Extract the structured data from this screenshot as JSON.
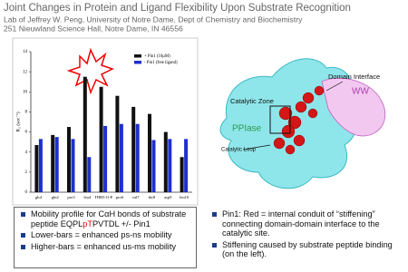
{
  "header": {
    "title": "Joint Changes in Protein and Ligand Flexibility Upon Substrate Recognition",
    "lines": [
      "Lab of Jeffrey W. Peng, University of Notre Dame, Dept of Chemistry and Biochemistry",
      "251 Nieuwland Science Hall, Notre Dame, IN 46556"
    ]
  },
  "chart_data": {
    "type": "bar",
    "ylabel": "R₂ (sec⁻¹)",
    "categories": [
      "glu1",
      "gln2",
      "pro3",
      "leu4",
      "THR5-O-P",
      "pro6",
      "val7",
      "thr8",
      "asp9",
      "leu10"
    ],
    "series": [
      {
        "name": "+ Pin1 (10μM)",
        "color": "#111111",
        "values": [
          4.7,
          5.7,
          6.5,
          11.5,
          10.5,
          9.6,
          8.5,
          7.8,
          6.0,
          3.5
        ]
      },
      {
        "name": "- Pin1 (free ligand)",
        "color": "#1f2fd0",
        "values": [
          5.3,
          5.5,
          5.3,
          3.5,
          6.6,
          6.8,
          6.8,
          5.2,
          5.3,
          5.3
        ]
      }
    ],
    "ylim": [
      0,
      14
    ],
    "yticks": [
      0,
      2,
      4,
      6,
      8,
      10,
      12,
      14
    ]
  },
  "figure": {
    "labels": [
      "Domain Interface",
      "WW",
      "Catalytic Zone",
      "PPIase",
      "Catalytic Loop"
    ]
  },
  "bullets_left": [
    [
      "Mobility profile for CαH bonds of substrate peptide EQPL",
      "pT",
      "PVTDL +/- Pin1"
    ],
    [
      "Lower-bars = enhanced ps-ns mobility"
    ],
    [
      "Higher-bars = enhanced us-ms mobility"
    ]
  ],
  "bullets_right": [
    "Pin1: Red = internal conduit of “stiffening” connecting domain-domain interface to the catalytic site.",
    "Stiffening caused by substrate peptide binding (on the left)."
  ]
}
